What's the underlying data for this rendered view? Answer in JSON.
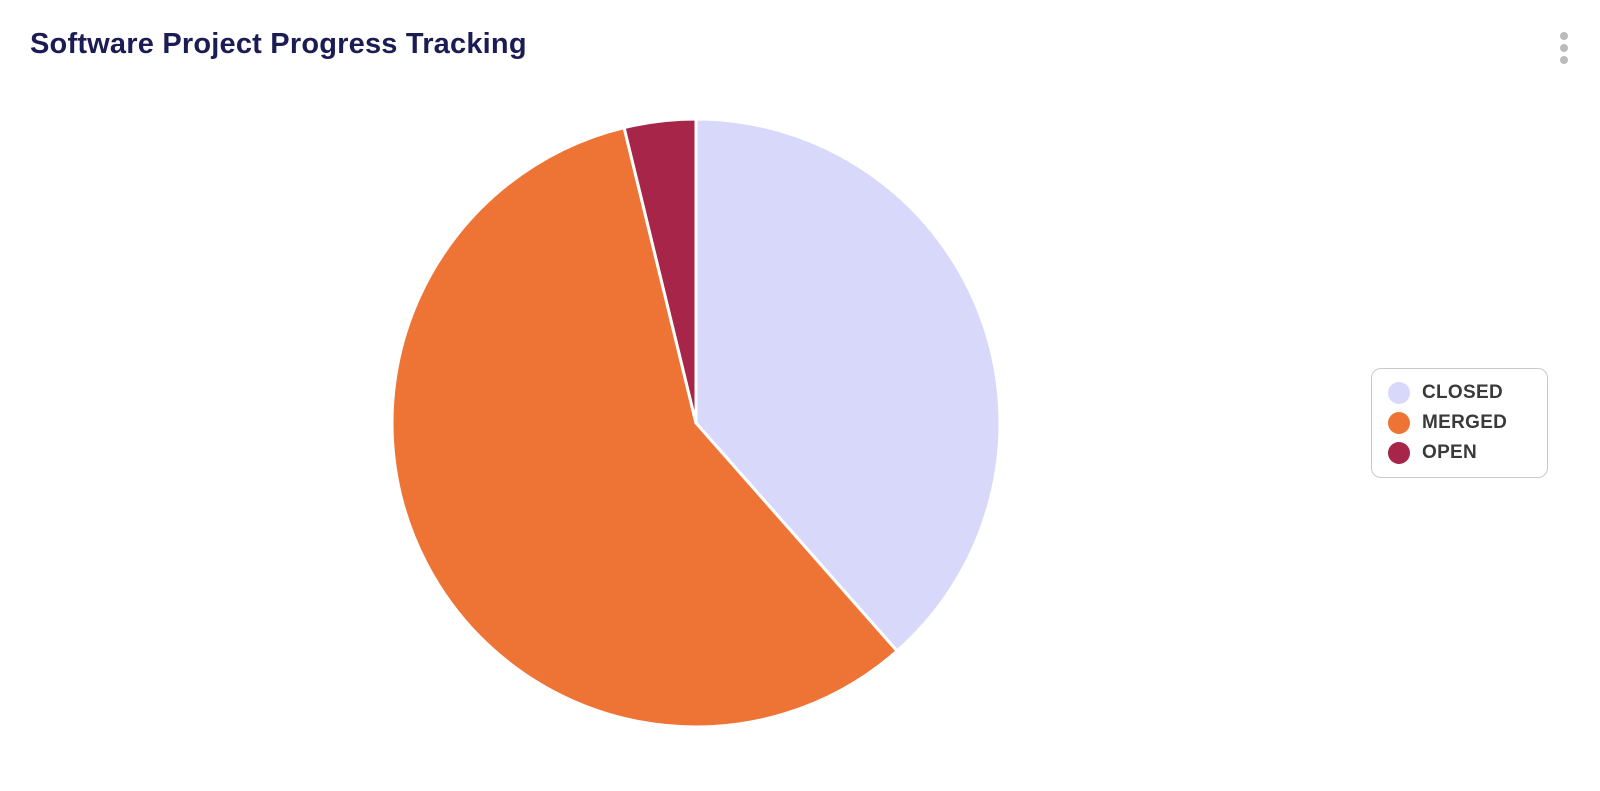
{
  "header": {
    "title": "Software Project Progress Tracking"
  },
  "icons": {
    "more_options": "kebab-vertical-icon"
  },
  "chart_data": {
    "type": "pie",
    "title": "Software Project Progress Tracking",
    "labels": [
      "CLOSED",
      "MERGED",
      "OPEN"
    ],
    "values_percent": [
      38.5,
      57.7,
      3.8
    ],
    "colors": [
      "#d8d8fb",
      "#ee7435",
      "#a62549"
    ],
    "start_angle_deg": 0,
    "direction": "clockwise",
    "slice_border_color": "#ffffff",
    "legend_position": "right",
    "legend_entries": [
      "CLOSED",
      "MERGED",
      "OPEN"
    ]
  },
  "legend": {
    "items": [
      {
        "label": "CLOSED",
        "color": "#d8d8fb"
      },
      {
        "label": "MERGED",
        "color": "#ee7435"
      },
      {
        "label": "OPEN",
        "color": "#a62549"
      }
    ]
  },
  "colors": {
    "title_text": "#1c1c54",
    "legend_text": "#3a3a3a",
    "legend_border": "#c9c9c9",
    "kebab_dots": "#bbbbbb",
    "background": "#ffffff"
  }
}
